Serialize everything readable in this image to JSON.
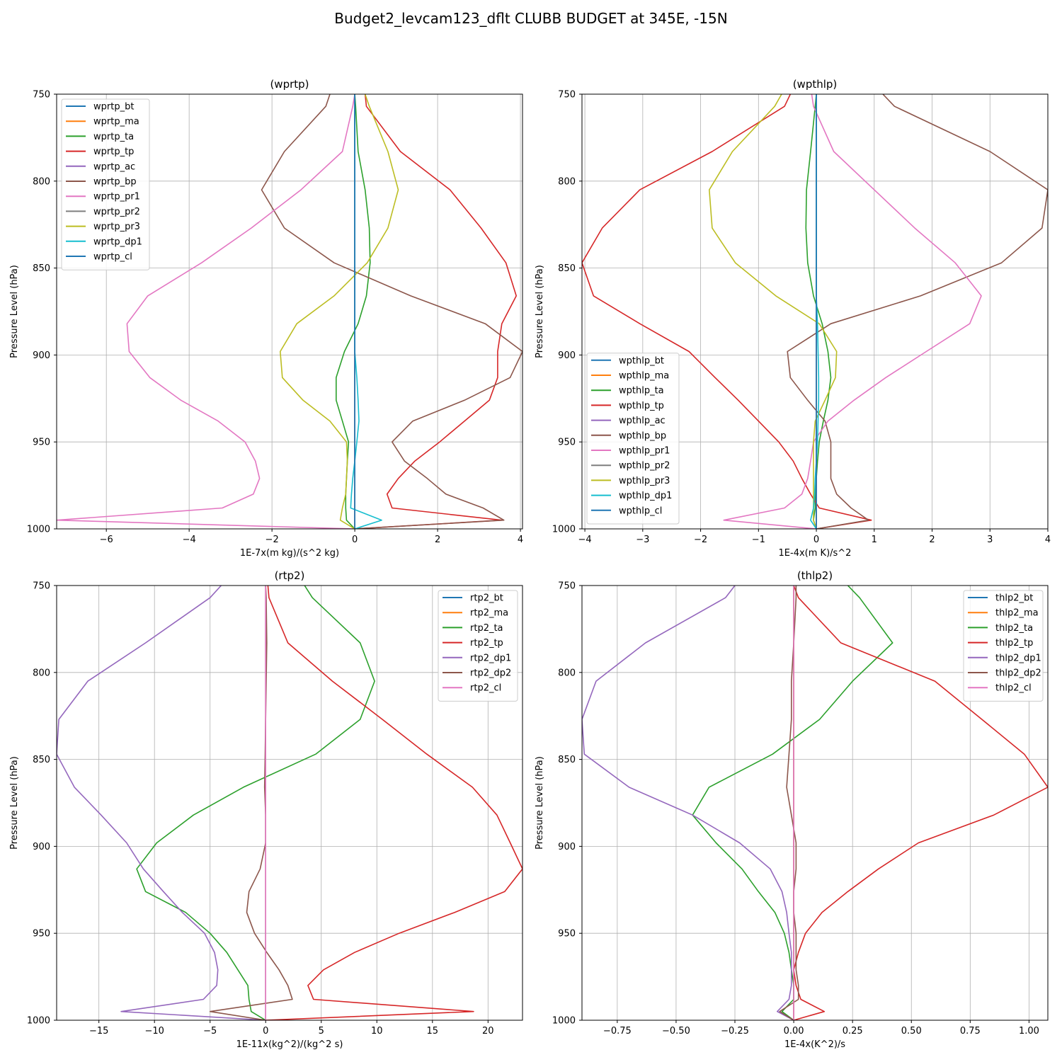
{
  "figure": {
    "title": "Budget2_levcam123_dflt CLUBB BUDGET at 345E, -15N"
  },
  "colors": {
    "C0": "#1f77b4",
    "C1": "#ff7f0e",
    "C2": "#2ca02c",
    "C3": "#d62728",
    "C4": "#9467bd",
    "C5": "#8c564b",
    "C6": "#e377c2",
    "C7": "#7f7f7f",
    "C8": "#bcbd22",
    "C9": "#17becf"
  },
  "chart_data": [
    {
      "type": "line",
      "title": "(wprtp)",
      "xlabel": "1E-7x(m kg)/(s^2 kg)",
      "ylabel": "Pressure Level (hPa)",
      "xlim": [
        -7.2,
        4.05
      ],
      "ylim": [
        1000,
        750
      ],
      "y_inverted": true,
      "xticks": [
        -6,
        -4,
        -2,
        0,
        2,
        4
      ],
      "yticks": [
        750,
        800,
        850,
        900,
        950,
        1000
      ],
      "grid": true,
      "legend_loc": "upper left",
      "levels": [
        750,
        757,
        783,
        805,
        827,
        847,
        866,
        882,
        898,
        913,
        926,
        938,
        950,
        961,
        971,
        980,
        988,
        995,
        1000
      ],
      "series": [
        {
          "name": "wprtp_bt",
          "color": "C0",
          "values": [
            0,
            0,
            0,
            0,
            0,
            0,
            0,
            0,
            0,
            0,
            0,
            0,
            0,
            0,
            0,
            0,
            0,
            0,
            0
          ]
        },
        {
          "name": "wprtp_ma",
          "color": "C1",
          "values": [
            0,
            0,
            0,
            0,
            0,
            0,
            0,
            0,
            0,
            0,
            0,
            0,
            0,
            0,
            0,
            0,
            0,
            0,
            0
          ]
        },
        {
          "name": "wprtp_ta",
          "color": "C2",
          "values": [
            0,
            0.02,
            0.08,
            0.25,
            0.35,
            0.37,
            0.28,
            0.08,
            -0.25,
            -0.45,
            -0.45,
            -0.3,
            -0.15,
            -0.18,
            -0.2,
            -0.22,
            -0.22,
            -0.2,
            0
          ]
        },
        {
          "name": "wprtp_tp",
          "color": "C3",
          "values": [
            0.25,
            0.28,
            1.1,
            2.3,
            3.05,
            3.65,
            3.9,
            3.55,
            3.45,
            3.45,
            3.25,
            2.65,
            2.05,
            1.45,
            1.05,
            0.78,
            0.9,
            3.55,
            0
          ]
        },
        {
          "name": "wprtp_ac",
          "color": "C4",
          "values": [
            0,
            0,
            0,
            0,
            0,
            0,
            0,
            0,
            0,
            0,
            0,
            0,
            0,
            0,
            0,
            0,
            0,
            0,
            0
          ]
        },
        {
          "name": "wprtp_bp",
          "color": "C5",
          "values": [
            -0.6,
            -0.7,
            -1.7,
            -2.25,
            -1.7,
            -0.5,
            1.35,
            3.15,
            4.05,
            3.75,
            2.65,
            1.4,
            0.9,
            1.2,
            1.75,
            2.2,
            3.1,
            3.6,
            0
          ]
        },
        {
          "name": "wprtp_pr1",
          "color": "C6",
          "values": [
            0,
            -0.05,
            -0.3,
            -1.3,
            -2.5,
            -3.7,
            -5.0,
            -5.5,
            -5.45,
            -4.95,
            -4.2,
            -3.3,
            -2.65,
            -2.4,
            -2.3,
            -2.45,
            -3.2,
            -7.2,
            0
          ]
        },
        {
          "name": "wprtp_pr2",
          "color": "C7",
          "values": [
            0,
            0,
            0,
            0,
            0,
            0,
            0,
            0,
            0,
            0,
            0,
            0,
            0,
            0,
            0,
            0,
            0,
            0,
            0
          ]
        },
        {
          "name": "wprtp_pr3",
          "color": "C8",
          "values": [
            0.25,
            0.35,
            0.8,
            1.05,
            0.8,
            0.3,
            -0.5,
            -1.4,
            -1.8,
            -1.75,
            -1.25,
            -0.6,
            -0.2,
            -0.18,
            -0.2,
            -0.22,
            -0.3,
            -0.35,
            0
          ]
        },
        {
          "name": "wprtp_dp1",
          "color": "C9",
          "values": [
            0,
            0,
            0,
            0,
            0,
            0,
            0,
            0,
            0,
            0.05,
            0.08,
            0.1,
            0.05,
            0,
            -0.05,
            -0.08,
            -0.1,
            0.65,
            0
          ]
        },
        {
          "name": "wprtp_cl",
          "color": "C0",
          "values": [
            0,
            0,
            0,
            0,
            0,
            0,
            0,
            0,
            0,
            0,
            0,
            0,
            0,
            0,
            0,
            0,
            0,
            0,
            0
          ]
        }
      ]
    },
    {
      "type": "line",
      "title": "(wpthlp)",
      "xlabel": "1E-4x(m K)/s^2",
      "ylabel": "Pressure Level (hPa)",
      "xlim": [
        -4.05,
        4.0
      ],
      "ylim": [
        1000,
        750
      ],
      "y_inverted": true,
      "xticks": [
        -4,
        -3,
        -2,
        -1,
        0,
        1,
        2,
        3,
        4
      ],
      "yticks": [
        750,
        800,
        850,
        900,
        950,
        1000
      ],
      "grid": true,
      "legend_loc": "lower left",
      "levels": [
        750,
        757,
        783,
        805,
        827,
        847,
        866,
        882,
        898,
        913,
        926,
        938,
        950,
        961,
        971,
        980,
        988,
        995,
        1000
      ],
      "series": [
        {
          "name": "wpthlp_bt",
          "color": "C0",
          "values": [
            0,
            0,
            0,
            0,
            0,
            0,
            0,
            0,
            0,
            0,
            0,
            0,
            0,
            0,
            0,
            0,
            0,
            0,
            0
          ]
        },
        {
          "name": "wpthlp_ma",
          "color": "C1",
          "values": [
            0,
            0,
            0,
            0,
            0,
            0,
            0,
            0,
            0,
            0,
            0,
            0,
            0,
            0,
            0,
            0,
            0,
            0,
            0
          ]
        },
        {
          "name": "wpthlp_ta",
          "color": "C2",
          "values": [
            0,
            -0.02,
            -0.1,
            -0.17,
            -0.18,
            -0.15,
            -0.05,
            0.1,
            0.2,
            0.25,
            0.2,
            0.12,
            0.05,
            0.02,
            0,
            -0.02,
            -0.02,
            -0.05,
            0
          ]
        },
        {
          "name": "wpthlp_tp",
          "color": "C3",
          "values": [
            -0.45,
            -0.55,
            -1.8,
            -3.05,
            -3.7,
            -4.05,
            -3.85,
            -3.05,
            -2.2,
            -1.75,
            -1.35,
            -1.0,
            -0.65,
            -0.4,
            -0.25,
            -0.1,
            0.05,
            0.95,
            0
          ]
        },
        {
          "name": "wpthlp_ac",
          "color": "C4",
          "values": [
            0,
            0,
            0,
            0,
            0,
            0,
            0,
            0,
            0,
            0,
            0,
            0,
            0,
            0,
            0,
            0,
            0,
            0,
            0
          ]
        },
        {
          "name": "wpthlp_bp",
          "color": "C5",
          "values": [
            1.15,
            1.35,
            3.0,
            4.0,
            3.9,
            3.2,
            1.8,
            0.25,
            -0.5,
            -0.45,
            -0.15,
            0.15,
            0.25,
            0.25,
            0.25,
            0.35,
            0.6,
            0.9,
            0
          ]
        },
        {
          "name": "wpthlp_pr1",
          "color": "C6",
          "values": [
            -0.08,
            -0.05,
            0.3,
            1.0,
            1.7,
            2.4,
            2.85,
            2.65,
            1.9,
            1.2,
            0.65,
            0.2,
            -0.05,
            -0.1,
            -0.15,
            -0.25,
            -0.55,
            -1.6,
            0
          ]
        },
        {
          "name": "wpthlp_pr2",
          "color": "C7",
          "values": [
            0,
            0,
            0,
            0,
            0,
            0,
            0,
            0,
            0,
            0,
            0,
            0,
            0,
            0,
            0,
            0,
            0,
            0,
            0
          ]
        },
        {
          "name": "wpthlp_pr3",
          "color": "C8",
          "values": [
            -0.6,
            -0.72,
            -1.45,
            -1.85,
            -1.8,
            -1.4,
            -0.7,
            0.05,
            0.35,
            0.33,
            0.15,
            -0.02,
            -0.05,
            -0.05,
            -0.05,
            -0.05,
            -0.05,
            -0.05,
            0
          ]
        },
        {
          "name": "wpthlp_dp1",
          "color": "C9",
          "values": [
            0,
            0,
            0,
            0,
            0,
            0,
            0,
            0.02,
            0.03,
            0.04,
            0.04,
            0.03,
            0.02,
            0,
            -0.02,
            -0.03,
            -0.05,
            -0.1,
            0
          ]
        },
        {
          "name": "wpthlp_cl",
          "color": "C0",
          "values": [
            0,
            0,
            0,
            0,
            0,
            0,
            0,
            0,
            0,
            0,
            0,
            0,
            0,
            0,
            0,
            0,
            0,
            0,
            0
          ]
        }
      ]
    },
    {
      "type": "line",
      "title": "(rtp2)",
      "xlabel": "1E-11x(kg^2)/(kg^2 s)",
      "ylabel": "Pressure Level (hPa)",
      "xlim": [
        -18.8,
        23.1
      ],
      "ylim": [
        1000,
        750
      ],
      "y_inverted": true,
      "xticks": [
        -15,
        -10,
        -5,
        0,
        5,
        10,
        15,
        20
      ],
      "yticks": [
        750,
        800,
        850,
        900,
        950,
        1000
      ],
      "grid": true,
      "legend_loc": "upper right",
      "levels": [
        750,
        757,
        783,
        805,
        827,
        847,
        866,
        882,
        898,
        913,
        926,
        938,
        950,
        961,
        971,
        980,
        988,
        995,
        1000
      ],
      "series": [
        {
          "name": "rtp2_bt",
          "color": "C0",
          "values": [
            0,
            0,
            0,
            0,
            0,
            0,
            0,
            0,
            0,
            0,
            0,
            0,
            0,
            0,
            0,
            0,
            0,
            0,
            0
          ]
        },
        {
          "name": "rtp2_ma",
          "color": "C1",
          "values": [
            0,
            0,
            0,
            0,
            0,
            0,
            0,
            0,
            0,
            0,
            0,
            0,
            0,
            0,
            0,
            0,
            0,
            0,
            0
          ]
        },
        {
          "name": "rtp2_ta",
          "color": "C2",
          "values": [
            3.5,
            4.2,
            8.5,
            9.8,
            8.5,
            4.5,
            -2.0,
            -6.5,
            -9.8,
            -11.6,
            -10.8,
            -7.2,
            -5.0,
            -3.5,
            -2.5,
            -1.6,
            -1.5,
            -1.3,
            0
          ]
        },
        {
          "name": "rtp2_tp",
          "color": "C3",
          "values": [
            0.2,
            0.3,
            2.0,
            6.0,
            10.5,
            14.5,
            18.6,
            20.8,
            22.0,
            23.1,
            21.5,
            17.0,
            12.0,
            8.0,
            5.2,
            3.8,
            4.3,
            18.7,
            0
          ]
        },
        {
          "name": "rtp2_dp1",
          "color": "C4",
          "values": [
            -4.0,
            -5.0,
            -10.8,
            -16.0,
            -18.6,
            -18.8,
            -17.2,
            -14.8,
            -12.5,
            -11.0,
            -9.2,
            -7.5,
            -5.5,
            -4.6,
            -4.3,
            -4.4,
            -5.6,
            -13.0,
            0
          ]
        },
        {
          "name": "rtp2_dp2",
          "color": "C5",
          "values": [
            0,
            0.05,
            0.1,
            0.05,
            0,
            -0.05,
            -0.1,
            0,
            0,
            -0.5,
            -1.5,
            -1.7,
            -1.0,
            0.1,
            1.2,
            2.0,
            2.4,
            -5.0,
            0
          ]
        },
        {
          "name": "rtp2_cl",
          "color": "C6",
          "values": [
            0,
            0,
            0,
            0,
            0,
            0,
            0,
            0,
            0,
            0,
            0,
            0,
            0,
            0,
            0,
            0,
            0,
            0,
            0
          ]
        }
      ]
    },
    {
      "type": "line",
      "title": "(thlp2)",
      "xlabel": "1E-4x(K^2)/s",
      "ylabel": "Pressure Level (hPa)",
      "xlim": [
        -0.9,
        1.08
      ],
      "ylim": [
        1000,
        750
      ],
      "y_inverted": true,
      "xticks": [
        -0.75,
        -0.5,
        -0.25,
        0.0,
        0.25,
        0.5,
        0.75,
        1.0
      ],
      "xticklabels": [
        "−0.75",
        "−0.50",
        "−0.25",
        "0.00",
        "0.25",
        "0.50",
        "0.75",
        "1.00"
      ],
      "yticks": [
        750,
        800,
        850,
        900,
        950,
        1000
      ],
      "grid": true,
      "legend_loc": "upper right",
      "levels": [
        750,
        757,
        783,
        805,
        827,
        847,
        866,
        882,
        898,
        913,
        926,
        938,
        950,
        961,
        971,
        980,
        988,
        995,
        1000
      ],
      "series": [
        {
          "name": "thlp2_bt",
          "color": "C0",
          "values": [
            0,
            0,
            0,
            0,
            0,
            0,
            0,
            0,
            0,
            0,
            0,
            0,
            0,
            0,
            0,
            0,
            0,
            0,
            0
          ]
        },
        {
          "name": "thlp2_ma",
          "color": "C1",
          "values": [
            0,
            0,
            0,
            0,
            0,
            0,
            0,
            0,
            0,
            0,
            0,
            0,
            0,
            0,
            0,
            0,
            0,
            0,
            0
          ]
        },
        {
          "name": "thlp2_ta",
          "color": "C2",
          "values": [
            0.23,
            0.28,
            0.42,
            0.25,
            0.11,
            -0.09,
            -0.36,
            -0.43,
            -0.33,
            -0.22,
            -0.15,
            -0.08,
            -0.04,
            -0.02,
            -0.01,
            0,
            0,
            -0.05,
            0
          ]
        },
        {
          "name": "thlp2_tp",
          "color": "C3",
          "values": [
            0,
            0.02,
            0.2,
            0.6,
            0.8,
            0.98,
            1.08,
            0.85,
            0.53,
            0.36,
            0.23,
            0.12,
            0.05,
            0.02,
            0,
            0.01,
            0.03,
            0.13,
            0
          ]
        },
        {
          "name": "thlp2_dp1",
          "color": "C4",
          "values": [
            -0.25,
            -0.29,
            -0.63,
            -0.84,
            -0.9,
            -0.89,
            -0.7,
            -0.43,
            -0.23,
            -0.1,
            -0.05,
            -0.03,
            -0.02,
            -0.01,
            -0.01,
            -0.01,
            -0.02,
            -0.07,
            0
          ]
        },
        {
          "name": "thlp2_dp2",
          "color": "C5",
          "values": [
            0.01,
            0.01,
            0,
            -0.01,
            -0.01,
            -0.02,
            -0.03,
            -0.01,
            0.01,
            0.01,
            0,
            0,
            0.01,
            0.01,
            0.01,
            0.02,
            0.02,
            -0.06,
            0
          ]
        },
        {
          "name": "thlp2_cl",
          "color": "C6",
          "values": [
            0,
            0,
            0,
            0,
            0,
            0,
            0,
            0,
            0,
            0,
            0,
            0,
            0,
            0,
            0,
            0,
            0,
            0,
            0
          ]
        }
      ]
    }
  ]
}
